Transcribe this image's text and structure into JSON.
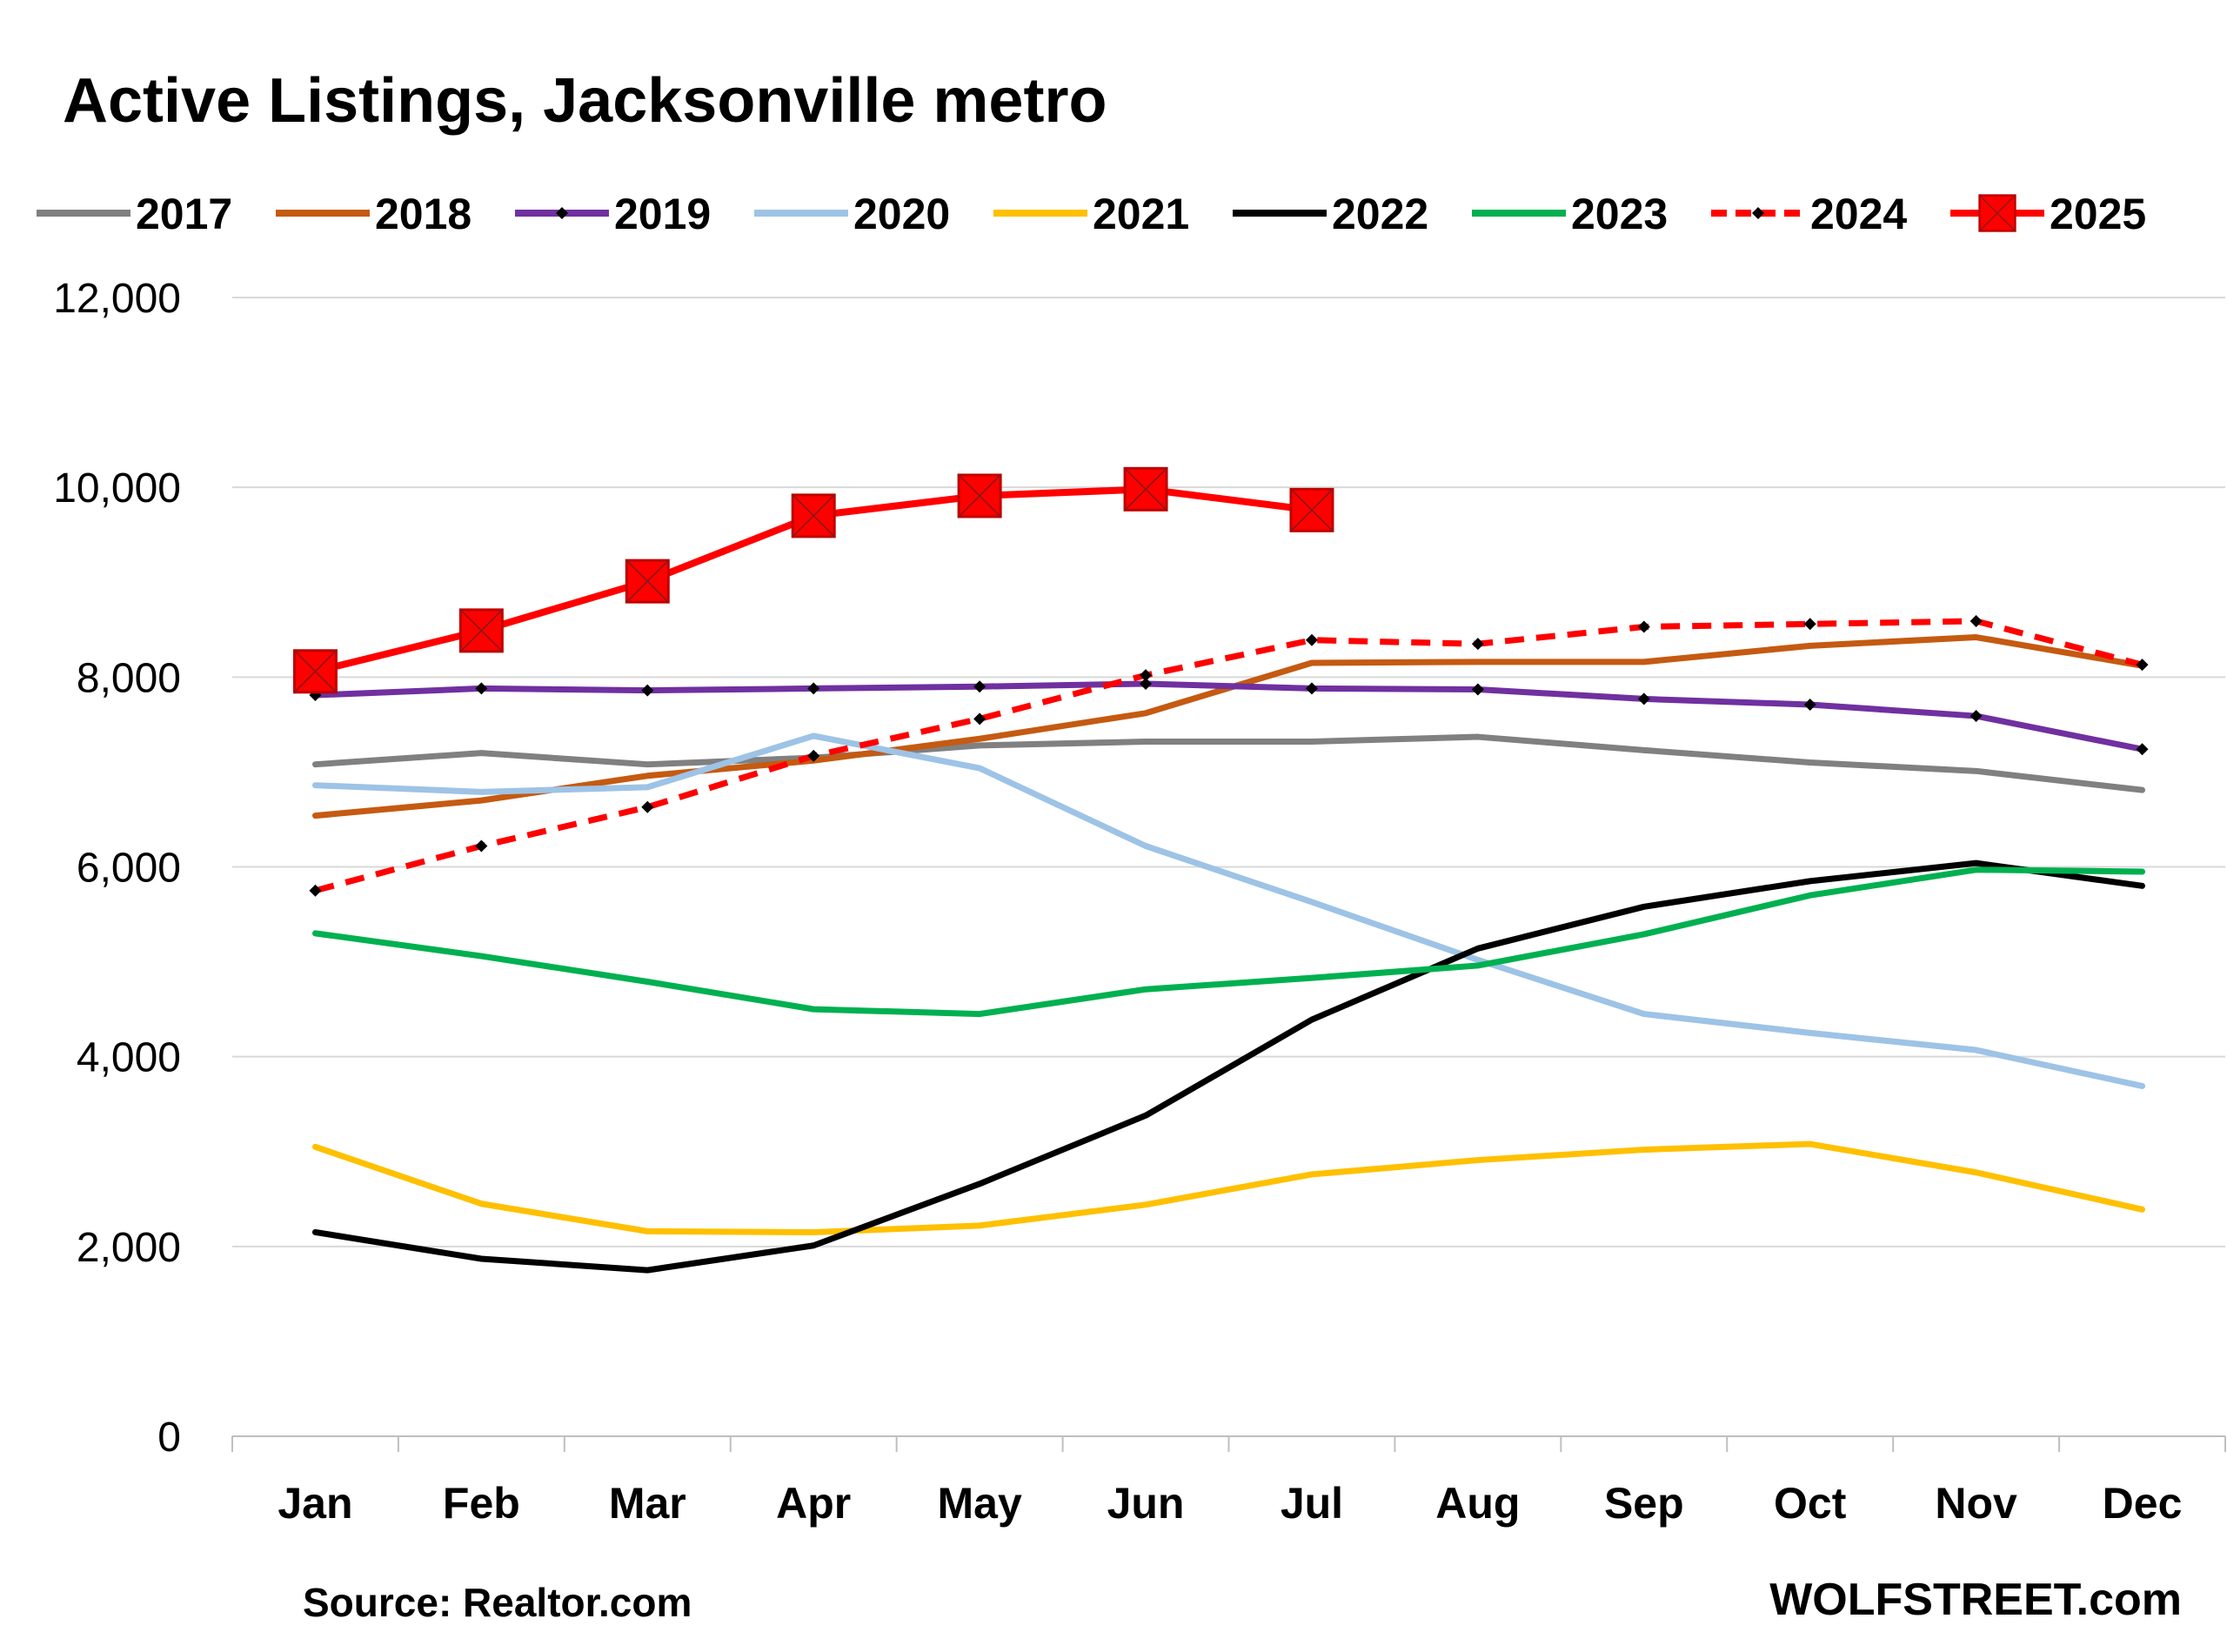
{
  "chart_data": {
    "type": "line",
    "title": "Active Listings, Jacksonville metro",
    "categories": [
      "Jan",
      "Feb",
      "Mar",
      "Apr",
      "May",
      "Jun",
      "Jul",
      "Aug",
      "Sep",
      "Oct",
      "Nov",
      "Dec"
    ],
    "ylim": [
      0,
      12000
    ],
    "yticks": [
      0,
      2000,
      4000,
      6000,
      8000,
      10000,
      12000
    ],
    "ytick_labels": [
      "0",
      "2,000",
      "4,000",
      "6,000",
      "8,000",
      "10,000",
      "12,000"
    ],
    "grid": "horizontal",
    "legend_position": "top",
    "series": [
      {
        "name": "2017",
        "color": "#808080",
        "style": "solid",
        "marker": "none",
        "values": [
          7080,
          7200,
          7080,
          7150,
          7280,
          7320,
          7320,
          7370,
          7230,
          7100,
          7010,
          6810
        ]
      },
      {
        "name": "2018",
        "color": "#C55A11",
        "style": "solid",
        "marker": "none",
        "values": [
          6540,
          6700,
          6960,
          7120,
          7350,
          7620,
          8150,
          8160,
          8160,
          8330,
          8420,
          8120
        ]
      },
      {
        "name": "2019",
        "color": "#7030A0",
        "style": "solid",
        "marker": "diamond",
        "values": [
          7810,
          7880,
          7860,
          7880,
          7900,
          7930,
          7880,
          7870,
          7770,
          7710,
          7590,
          7240
        ]
      },
      {
        "name": "2020",
        "color": "#9DC3E6",
        "style": "solid",
        "marker": "none",
        "values": [
          6860,
          6790,
          6840,
          7380,
          7040,
          6220,
          5630,
          5020,
          4450,
          4250,
          4070,
          3690
        ]
      },
      {
        "name": "2021",
        "color": "#FFC000",
        "style": "solid",
        "marker": "none",
        "values": [
          3050,
          2450,
          2160,
          2150,
          2220,
          2440,
          2760,
          2910,
          3020,
          3080,
          2780,
          2390
        ]
      },
      {
        "name": "2022",
        "color": "#000000",
        "style": "solid",
        "marker": "none",
        "values": [
          2150,
          1870,
          1750,
          2010,
          2660,
          3380,
          4390,
          5140,
          5580,
          5850,
          6040,
          5800
        ]
      },
      {
        "name": "2023",
        "color": "#00B050",
        "style": "solid",
        "marker": "none",
        "values": [
          5300,
          5060,
          4790,
          4500,
          4450,
          4710,
          4830,
          4960,
          5290,
          5700,
          5970,
          5950
        ]
      },
      {
        "name": "2024",
        "color": "#FF0000",
        "style": "dashed",
        "marker": "diamond",
        "values": [
          5750,
          6220,
          6630,
          7170,
          7560,
          8020,
          8390,
          8350,
          8530,
          8560,
          8590,
          8130
        ]
      },
      {
        "name": "2025",
        "color": "#FF0000",
        "style": "solid",
        "marker": "square-x",
        "values": [
          8060,
          8490,
          9010,
          9700,
          9910,
          9980,
          9760,
          null,
          null,
          null,
          null,
          null
        ]
      }
    ]
  },
  "footer": {
    "source": "Source: Realtor.com",
    "brand": "WOLFSTREET.com"
  }
}
